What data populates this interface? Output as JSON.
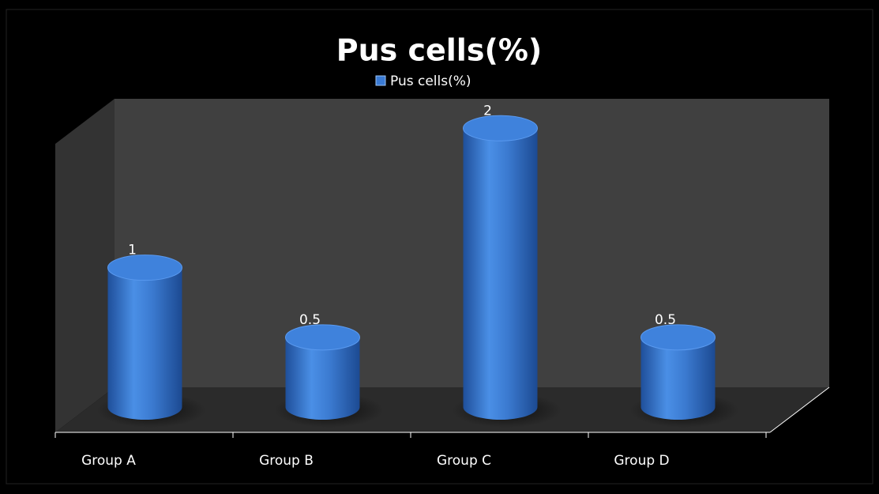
{
  "chart_data": {
    "type": "bar",
    "title": "Pus cells(%)",
    "categories": [
      "Group A",
      "Group B",
      "Group C",
      "Group D"
    ],
    "series": [
      {
        "name": "Pus cells(%)",
        "color": "#3a7bd5",
        "values": [
          1,
          0.5,
          2,
          0.5
        ]
      }
    ],
    "ylim": [
      0,
      2.2
    ]
  }
}
